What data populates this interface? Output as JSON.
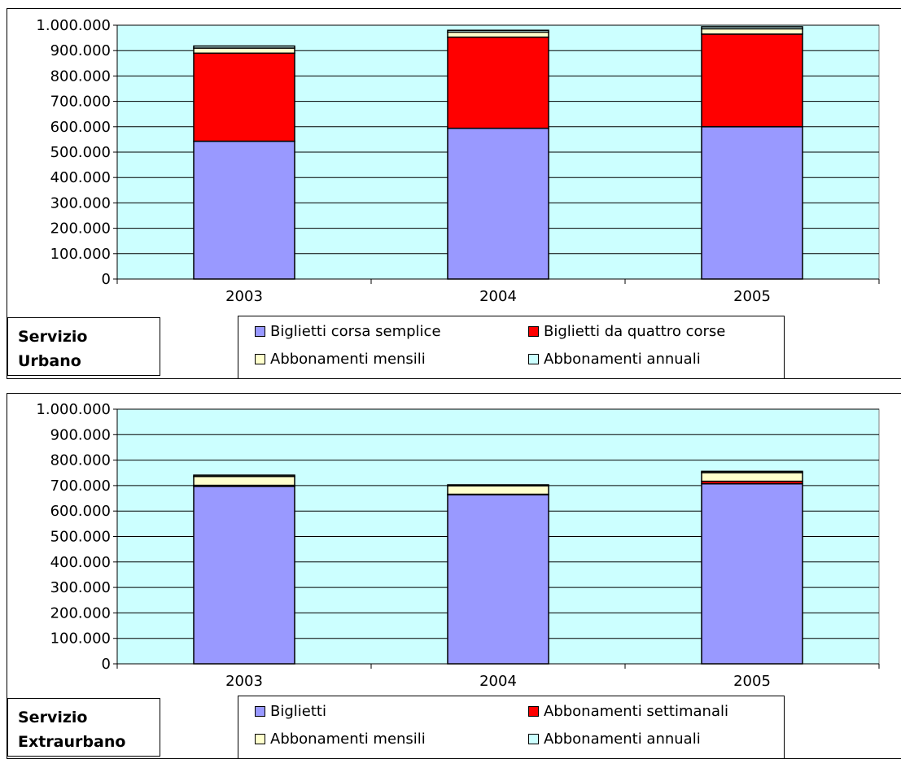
{
  "chart_data": [
    {
      "type": "bar",
      "stacked": true,
      "title": "Servizio Urbano",
      "title_lines": [
        "Servizio",
        "Urbano"
      ],
      "categories": [
        "2003",
        "2004",
        "2005"
      ],
      "ylim": [
        0,
        1000000
      ],
      "yticks": [
        "0",
        "100.000",
        "200.000",
        "300.000",
        "400.000",
        "500.000",
        "600.000",
        "700.000",
        "800.000",
        "900.000",
        "1.000.000"
      ],
      "grid": true,
      "legend_position": "bottom",
      "series": [
        {
          "name": "Biglietti corsa semplice",
          "color": "#9999FF",
          "values": [
            543000,
            594000,
            600000
          ]
        },
        {
          "name": "Biglietti da quattro corse",
          "color": "#FF0000",
          "values": [
            347000,
            359000,
            365000
          ]
        },
        {
          "name": "Abbonamenti mensili",
          "color": "#FFFFCC",
          "values": [
            20000,
            20000,
            21000
          ]
        },
        {
          "name": "Abbonamenti annuali",
          "color": "#CCFFFF",
          "values": [
            8000,
            7000,
            8000
          ]
        }
      ]
    },
    {
      "type": "bar",
      "stacked": true,
      "title": "Servizio Extraurbano",
      "title_lines": [
        "Servizio",
        "Extraurbano"
      ],
      "categories": [
        "2003",
        "2004",
        "2005"
      ],
      "ylim": [
        0,
        1000000
      ],
      "yticks": [
        "0",
        "100.000",
        "200.000",
        "300.000",
        "400.000",
        "500.000",
        "600.000",
        "700.000",
        "800.000",
        "900.000",
        "1.000.000"
      ],
      "grid": true,
      "legend_position": "bottom",
      "series": [
        {
          "name": "Biglietti",
          "color": "#9999FF",
          "values": [
            697000,
            664000,
            707000
          ]
        },
        {
          "name": "Abbonamenti settimanali",
          "color": "#FF0000",
          "values": [
            4000,
            2000,
            10000
          ]
        },
        {
          "name": "Abbonamenti mensili",
          "color": "#FFFFCC",
          "values": [
            35000,
            33000,
            34000
          ]
        },
        {
          "name": "Abbonamenti annuali",
          "color": "#CCFFFF",
          "values": [
            5000,
            4000,
            5000
          ]
        }
      ]
    }
  ]
}
